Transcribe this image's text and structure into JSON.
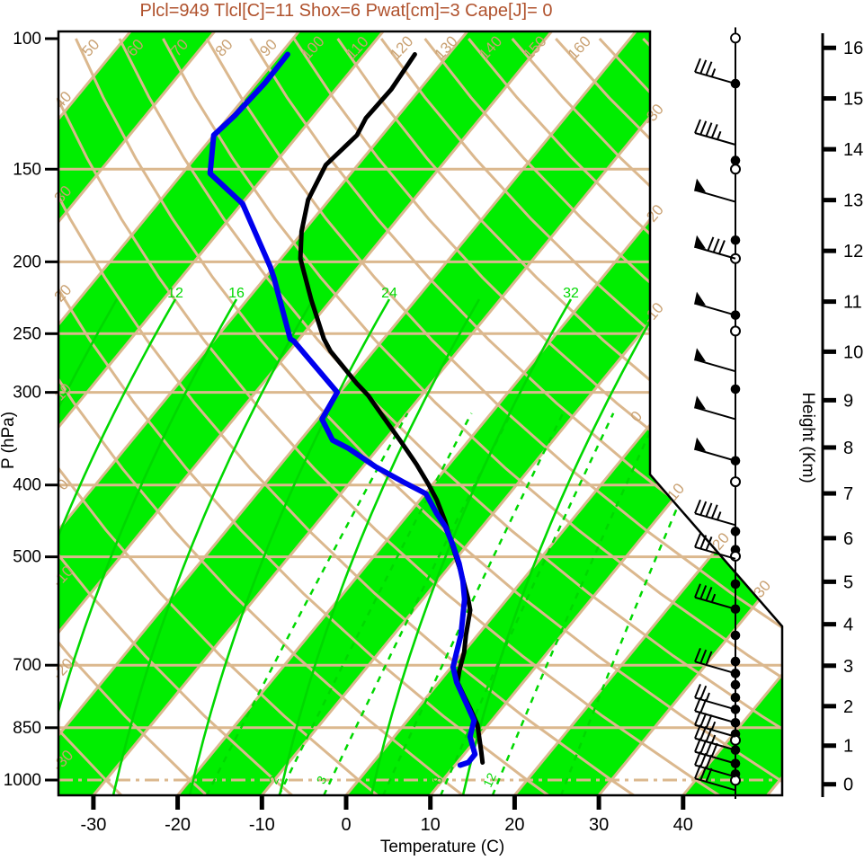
{
  "title": {
    "text": "Plcl=949 Tlcl[C]=11 Shox=6 Pwat[cm]=3 Cape[J]= 0",
    "color": "#B0522D"
  },
  "parameters": {
    "plcl_hpa": 949,
    "tlcl_c": 11,
    "shox": 6,
    "pwat_cm": 3,
    "cape_j": 0
  },
  "colors": {
    "tan_line": "#DBB88E",
    "tan_label": "#C9A172",
    "green_fill": "#00EE00",
    "green_line": "#00D800",
    "temperature_curve": "#000000",
    "dewpoint_curve": "#0000EE",
    "axis": "#000000",
    "title": "#B0522D"
  },
  "axes": {
    "pressure": {
      "title": "P (hPa)",
      "ticks": [
        100,
        150,
        200,
        250,
        300,
        400,
        500,
        700,
        850,
        1000
      ]
    },
    "temperature": {
      "title": "Temperature (C)",
      "ticks": [
        -30,
        -20,
        -10,
        0,
        10,
        20,
        30,
        40
      ]
    },
    "height": {
      "title": "Height (Km)",
      "ticks": [
        0,
        1,
        2,
        3,
        4,
        5,
        6,
        7,
        8,
        9,
        10,
        11,
        12,
        13,
        14,
        15,
        16
      ]
    }
  },
  "scale_labels": {
    "dry_adiabat_top": [
      50,
      60,
      70,
      80,
      90,
      100,
      110,
      120,
      130,
      140,
      150,
      160
    ],
    "dry_adiabat_left": [
      40,
      30,
      20,
      10,
      0,
      -10,
      -20,
      -30
    ],
    "isotherm_right": [
      -30,
      -20,
      -10,
      0,
      10,
      20,
      30
    ],
    "moist_adiabat": [
      12,
      16,
      24,
      32
    ],
    "mixing_ratio": [
      2,
      3,
      8,
      12
    ]
  },
  "chart_data": {
    "type": "line",
    "chart_kind": "skew-T log-p thermodynamic sounding",
    "title": "Plcl=949 Tlcl[C]=11 Shox=6 Pwat[cm]=3 Cape[J]= 0",
    "xlabel": "Temperature (C)",
    "ylabel_left": "P (hPa)",
    "ylabel_right": "Height (Km)",
    "x_range_c": [
      -35,
      48
    ],
    "pressure_range_hpa": [
      100,
      1050
    ],
    "series": [
      {
        "name": "temperature",
        "color": "#000000",
        "points_p_t": [
          [
            105,
            -64.0
          ],
          [
            117,
            -63.4
          ],
          [
            128,
            -63.6
          ],
          [
            135,
            -63.0
          ],
          [
            148,
            -63.8
          ],
          [
            165,
            -62.5
          ],
          [
            182,
            -60.2
          ],
          [
            198,
            -57.7
          ],
          [
            225,
            -52.4
          ],
          [
            254,
            -47.1
          ],
          [
            264,
            -45.1
          ],
          [
            292,
            -38.8
          ],
          [
            303,
            -36.3
          ],
          [
            329,
            -31.5
          ],
          [
            351,
            -27.7
          ],
          [
            375,
            -23.9
          ],
          [
            400,
            -20.4
          ],
          [
            419,
            -18.0
          ],
          [
            447,
            -15.0
          ],
          [
            472,
            -12.7
          ],
          [
            528,
            -7.8
          ],
          [
            569,
            -4.7
          ],
          [
            590,
            -3.3
          ],
          [
            637,
            -1.4
          ],
          [
            673,
            0.1
          ],
          [
            712,
            1.3
          ],
          [
            738,
            2.2
          ],
          [
            770,
            4.3
          ],
          [
            803,
            6.4
          ],
          [
            842,
            8.7
          ],
          [
            916,
            11.8
          ],
          [
            947,
            13.0
          ]
        ]
      },
      {
        "name": "dewpoint",
        "color": "#0000EE",
        "points_p_t": [
          [
            105,
            -79.1
          ],
          [
            115,
            -79.0
          ],
          [
            127,
            -79.4
          ],
          [
            135,
            -80.0
          ],
          [
            152,
            -76.7
          ],
          [
            167,
            -69.9
          ],
          [
            203,
            -60.5
          ],
          [
            210,
            -59.0
          ],
          [
            254,
            -51.1
          ],
          [
            256,
            -50.4
          ],
          [
            300,
            -40.3
          ],
          [
            326,
            -39.5
          ],
          [
            348,
            -36.2
          ],
          [
            357,
            -33.5
          ],
          [
            378,
            -28.5
          ],
          [
            396,
            -23.8
          ],
          [
            411,
            -19.9
          ],
          [
            437,
            -16.7
          ],
          [
            456,
            -14.3
          ],
          [
            482,
            -11.7
          ],
          [
            510,
            -9.2
          ],
          [
            539,
            -7.0
          ],
          [
            571,
            -5.0
          ],
          [
            603,
            -3.5
          ],
          [
            637,
            -2.0
          ],
          [
            673,
            -0.8
          ],
          [
            704,
            0.2
          ],
          [
            738,
            2.1
          ],
          [
            788,
            5.3
          ],
          [
            831,
            7.9
          ],
          [
            874,
            9.0
          ],
          [
            923,
            11.3
          ],
          [
            947,
            11.3
          ],
          [
            955,
            10.6
          ]
        ]
      }
    ],
    "wind_levels": [
      {
        "p": 99,
        "marker": "calm",
        "barb": null
      },
      {
        "p": 115,
        "marker": "dot",
        "barb": [
          0,
          3,
          1
        ]
      },
      {
        "p": 139,
        "marker": null,
        "barb": [
          0,
          4,
          1
        ]
      },
      {
        "p": 146,
        "marker": "dot",
        "barb": null
      },
      {
        "p": 150,
        "marker": "circle",
        "barb": null
      },
      {
        "p": 166,
        "marker": null,
        "barb": [
          1,
          0,
          0
        ]
      },
      {
        "p": 187,
        "marker": "dot",
        "barb": null
      },
      {
        "p": 198,
        "marker": "circle",
        "barb": [
          1,
          3,
          0
        ]
      },
      {
        "p": 236,
        "marker": "dot",
        "barb": [
          1,
          0,
          0
        ]
      },
      {
        "p": 248,
        "marker": "circle",
        "barb": null
      },
      {
        "p": 281,
        "marker": null,
        "barb": [
          1,
          0,
          0
        ]
      },
      {
        "p": 297,
        "marker": "dot",
        "barb": null
      },
      {
        "p": 326,
        "marker": null,
        "barb": [
          1,
          0,
          0
        ]
      },
      {
        "p": 371,
        "marker": "dot",
        "barb": [
          1,
          0,
          0
        ]
      },
      {
        "p": 396,
        "marker": "circle",
        "barb": null
      },
      {
        "p": 453,
        "marker": null,
        "barb": [
          0,
          4,
          1
        ]
      },
      {
        "p": 462,
        "marker": "dot",
        "barb": null
      },
      {
        "p": 489,
        "marker": "dot",
        "barb": null
      },
      {
        "p": 499,
        "marker": "circle",
        "barb": null
      },
      {
        "p": 503,
        "marker": null,
        "barb": [
          0,
          3,
          0
        ]
      },
      {
        "p": 544,
        "marker": "dot",
        "barb": null
      },
      {
        "p": 588,
        "marker": "dot",
        "barb": [
          0,
          3,
          1
        ]
      },
      {
        "p": 638,
        "marker": "dot",
        "barb": null
      },
      {
        "p": 692,
        "marker": "dot",
        "barb": null
      },
      {
        "p": 718,
        "marker": "dot",
        "barb": [
          0,
          3,
          0
        ]
      },
      {
        "p": 744,
        "marker": "dot",
        "barb": null
      },
      {
        "p": 774,
        "marker": "dot",
        "barb": null
      },
      {
        "p": 803,
        "marker": "dot",
        "barb": [
          0,
          2,
          1
        ]
      },
      {
        "p": 837,
        "marker": "dot",
        "barb": [
          0,
          2,
          0
        ]
      },
      {
        "p": 874,
        "marker": "dotcircle",
        "barb": [
          0,
          3,
          1
        ]
      },
      {
        "p": 911,
        "marker": "dot",
        "barb": [
          0,
          3,
          1
        ]
      },
      {
        "p": 950,
        "marker": "dot",
        "barb": [
          0,
          4,
          0
        ]
      },
      {
        "p": 990,
        "marker": "dotcircle",
        "barb": [
          0,
          3,
          0
        ]
      },
      {
        "p": 1032,
        "marker": null,
        "barb": [
          0,
          3,
          0
        ]
      }
    ],
    "background": {
      "isotherms_c": {
        "min": -120,
        "max": 50,
        "step": 10
      },
      "dry_adiabats_c": {
        "min": -30,
        "max": 200,
        "step": 10
      },
      "moist_adiabats": [
        8,
        12,
        16,
        20,
        24,
        28,
        32,
        36
      ],
      "mixing_ratio_g_kg": [
        1,
        2,
        3,
        5,
        8,
        12,
        20
      ],
      "pressure_lines_hpa": [
        150,
        200,
        250,
        300,
        400,
        500,
        700,
        850,
        1000
      ],
      "height_ticks_km": [
        0,
        1,
        2,
        3,
        4,
        5,
        6,
        7,
        8,
        9,
        10,
        11,
        12,
        13,
        14,
        15,
        16
      ],
      "shaded_band_start_temps_c": [
        -120,
        -100,
        -80,
        -60,
        -40,
        -20,
        0,
        20,
        40
      ],
      "grid": true,
      "legend": "none"
    }
  }
}
